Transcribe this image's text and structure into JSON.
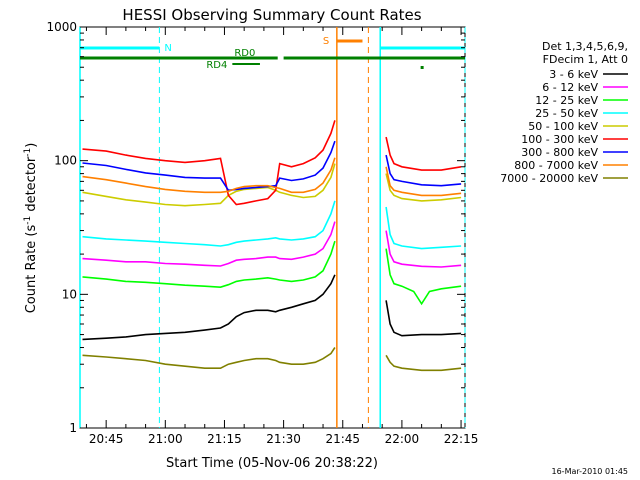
{
  "chart_data": {
    "type": "line",
    "title": "HESSI Observing Summary Count Rates",
    "xlabel": "Start Time (05-Nov-06 20:38:22)",
    "ylabel": "Count Rate (s⁻¹ detector⁻¹)",
    "ylabel_prefix": "Count Rate (s",
    "ylabel_sup1": "-1",
    "ylabel_mid": " detector",
    "ylabel_sup2": "-1",
    "ylabel_suffix": ")",
    "yscale": "log",
    "ylim": [
      1,
      1000
    ],
    "xlim": [
      "20:38:22",
      "22:16:00"
    ],
    "x_ticks": [
      "20:45",
      "21:00",
      "21:15",
      "21:30",
      "21:45",
      "22:00",
      "22:15"
    ],
    "y_ticks": [
      "1",
      "10",
      "100",
      "1000"
    ],
    "grid": false,
    "legend_position": "right",
    "legend_header": [
      "Det 1,3,4,5,6,9,",
      "FDecim 1, Att 0"
    ],
    "footer": "16-Mar-2010 01:45",
    "colors": {
      "night": "#00ffff",
      "saa": "#ff8000",
      "rd": "#008000"
    },
    "annotations": {
      "night_label": "N",
      "saa_label": "S",
      "rd0_label": "RD0",
      "rd4_label": "RD4",
      "night_intervals": [
        [
          "20:38:22",
          "20:58:30"
        ],
        [
          "21:54:30",
          "22:16:00"
        ]
      ],
      "saa_interval": [
        "21:43:30",
        "21:51:30"
      ],
      "rd0_intervals": [
        [
          "20:38:22",
          "21:28:30"
        ],
        [
          "21:30:00",
          "22:16:00"
        ]
      ],
      "rd4_interval": [
        "21:17:00",
        "21:24:00"
      ],
      "rd_dot": "22:05:00"
    },
    "series": [
      {
        "name": "3 - 6 keV",
        "color": "#000000",
        "points": [
          [
            "20:39",
            4.6
          ],
          [
            "20:45",
            4.7
          ],
          [
            "20:50",
            4.8
          ],
          [
            "20:55",
            5.0
          ],
          [
            "21:00",
            5.1
          ],
          [
            "21:05",
            5.2
          ],
          [
            "21:10",
            5.4
          ],
          [
            "21:14",
            5.6
          ],
          [
            "21:16",
            6.0
          ],
          [
            "21:18",
            6.8
          ],
          [
            "21:20",
            7.3
          ],
          [
            "21:23",
            7.6
          ],
          [
            "21:26",
            7.6
          ],
          [
            "21:28",
            7.4
          ],
          [
            "21:29",
            7.6
          ],
          [
            "21:32",
            8.0
          ],
          [
            "21:35",
            8.5
          ],
          [
            "21:38",
            9.0
          ],
          [
            "21:40",
            10.0
          ],
          [
            "21:42",
            12.0
          ],
          [
            "21:43",
            14.0
          ],
          [
            "21:56",
            9.0
          ],
          [
            "21:57",
            6.0
          ],
          [
            "21:58",
            5.2
          ],
          [
            "22:00",
            4.9
          ],
          [
            "22:05",
            5.0
          ],
          [
            "22:10",
            5.0
          ],
          [
            "22:15",
            5.1
          ]
        ]
      },
      {
        "name": "6 - 12 keV",
        "color": "#ff00ff",
        "points": [
          [
            "20:39",
            18.5
          ],
          [
            "20:45",
            18.0
          ],
          [
            "20:50",
            17.5
          ],
          [
            "20:55",
            17.5
          ],
          [
            "21:00",
            17.0
          ],
          [
            "21:05",
            16.8
          ],
          [
            "21:10",
            16.5
          ],
          [
            "21:14",
            16.3
          ],
          [
            "21:16",
            17.0
          ],
          [
            "21:18",
            18.0
          ],
          [
            "21:20",
            18.3
          ],
          [
            "21:23",
            18.5
          ],
          [
            "21:26",
            19.0
          ],
          [
            "21:28",
            19.0
          ],
          [
            "21:29",
            18.5
          ],
          [
            "21:32",
            18.3
          ],
          [
            "21:35",
            19.0
          ],
          [
            "21:38",
            20.0
          ],
          [
            "21:40",
            22.0
          ],
          [
            "21:42",
            28.0
          ],
          [
            "21:43",
            35.0
          ],
          [
            "21:56",
            30.0
          ],
          [
            "21:57",
            20.0
          ],
          [
            "21:58",
            17.5
          ],
          [
            "22:00",
            16.8
          ],
          [
            "22:05",
            16.2
          ],
          [
            "22:10",
            16.0
          ],
          [
            "22:15",
            16.5
          ]
        ]
      },
      {
        "name": "12 - 25 keV",
        "color": "#00ff00",
        "points": [
          [
            "20:39",
            13.5
          ],
          [
            "20:45",
            13.0
          ],
          [
            "20:50",
            12.5
          ],
          [
            "20:55",
            12.3
          ],
          [
            "21:00",
            12.0
          ],
          [
            "21:05",
            11.7
          ],
          [
            "21:10",
            11.5
          ],
          [
            "21:14",
            11.3
          ],
          [
            "21:16",
            11.8
          ],
          [
            "21:18",
            12.5
          ],
          [
            "21:20",
            12.8
          ],
          [
            "21:23",
            13.0
          ],
          [
            "21:26",
            13.3
          ],
          [
            "21:28",
            13.0
          ],
          [
            "21:29",
            12.8
          ],
          [
            "21:32",
            12.5
          ],
          [
            "21:35",
            12.8
          ],
          [
            "21:38",
            13.5
          ],
          [
            "21:40",
            15.0
          ],
          [
            "21:42",
            20.0
          ],
          [
            "21:43",
            25.0
          ],
          [
            "21:56",
            22.0
          ],
          [
            "21:57",
            14.0
          ],
          [
            "21:58",
            12.0
          ],
          [
            "22:00",
            11.5
          ],
          [
            "22:03",
            10.5
          ],
          [
            "22:05",
            8.5
          ],
          [
            "22:07",
            10.5
          ],
          [
            "22:10",
            11.0
          ],
          [
            "22:15",
            11.5
          ]
        ]
      },
      {
        "name": "25 - 50 keV",
        "color": "#00ffff",
        "points": [
          [
            "20:39",
            27.0
          ],
          [
            "20:45",
            26.0
          ],
          [
            "20:50",
            25.5
          ],
          [
            "20:55",
            25.0
          ],
          [
            "21:00",
            24.5
          ],
          [
            "21:05",
            24.0
          ],
          [
            "21:10",
            23.5
          ],
          [
            "21:14",
            23.0
          ],
          [
            "21:16",
            23.5
          ],
          [
            "21:18",
            24.5
          ],
          [
            "21:20",
            25.0
          ],
          [
            "21:23",
            25.5
          ],
          [
            "21:26",
            26.0
          ],
          [
            "21:28",
            26.5
          ],
          [
            "21:29",
            26.0
          ],
          [
            "21:32",
            25.5
          ],
          [
            "21:35",
            26.0
          ],
          [
            "21:38",
            27.0
          ],
          [
            "21:40",
            30.0
          ],
          [
            "21:42",
            40.0
          ],
          [
            "21:43",
            50.0
          ],
          [
            "21:56",
            45.0
          ],
          [
            "21:57",
            28.0
          ],
          [
            "21:58",
            24.0
          ],
          [
            "22:00",
            23.0
          ],
          [
            "22:05",
            22.0
          ],
          [
            "22:10",
            22.5
          ],
          [
            "22:15",
            23.0
          ]
        ]
      },
      {
        "name": "50 - 100 keV",
        "color": "#cccc00",
        "points": [
          [
            "20:39",
            58.0
          ],
          [
            "20:45",
            54.0
          ],
          [
            "20:50",
            51.0
          ],
          [
            "20:55",
            49.0
          ],
          [
            "21:00",
            47.0
          ],
          [
            "21:05",
            46.0
          ],
          [
            "21:10",
            47.0
          ],
          [
            "21:14",
            48.0
          ],
          [
            "21:16",
            55.0
          ],
          [
            "21:18",
            59.0
          ],
          [
            "21:20",
            61.0
          ],
          [
            "21:23",
            62.0
          ],
          [
            "21:26",
            63.0
          ],
          [
            "21:28",
            60.0
          ],
          [
            "21:29",
            58.0
          ],
          [
            "21:32",
            55.0
          ],
          [
            "21:35",
            53.0
          ],
          [
            "21:38",
            54.0
          ],
          [
            "21:40",
            60.0
          ],
          [
            "21:42",
            75.0
          ],
          [
            "21:43",
            95.0
          ],
          [
            "21:56",
            80.0
          ],
          [
            "21:57",
            60.0
          ],
          [
            "21:58",
            55.0
          ],
          [
            "22:00",
            52.0
          ],
          [
            "22:05",
            50.0
          ],
          [
            "22:10",
            51.0
          ],
          [
            "22:15",
            53.0
          ]
        ]
      },
      {
        "name": "100 - 300 keV",
        "color": "#ff0000",
        "points": [
          [
            "20:39",
            122.0
          ],
          [
            "20:45",
            118.0
          ],
          [
            "20:50",
            110.0
          ],
          [
            "20:55",
            104.0
          ],
          [
            "21:00",
            100.0
          ],
          [
            "21:05",
            97.0
          ],
          [
            "21:10",
            100.0
          ],
          [
            "21:14",
            104.0
          ],
          [
            "21:16",
            55.0
          ],
          [
            "21:18",
            47.0
          ],
          [
            "21:20",
            48.0
          ],
          [
            "21:23",
            50.0
          ],
          [
            "21:26",
            52.0
          ],
          [
            "21:28",
            60.0
          ],
          [
            "21:29",
            95.0
          ],
          [
            "21:32",
            90.0
          ],
          [
            "21:35",
            95.0
          ],
          [
            "21:38",
            105.0
          ],
          [
            "21:40",
            120.0
          ],
          [
            "21:42",
            160.0
          ],
          [
            "21:43",
            200.0
          ],
          [
            "21:56",
            150.0
          ],
          [
            "21:57",
            110.0
          ],
          [
            "21:58",
            95.0
          ],
          [
            "22:00",
            90.0
          ],
          [
            "22:05",
            85.0
          ],
          [
            "22:10",
            85.0
          ],
          [
            "22:15",
            90.0
          ]
        ]
      },
      {
        "name": "300 - 800 keV",
        "color": "#0000ff",
        "points": [
          [
            "20:39",
            96.0
          ],
          [
            "20:45",
            92.0
          ],
          [
            "20:50",
            86.0
          ],
          [
            "20:55",
            81.0
          ],
          [
            "21:00",
            78.0
          ],
          [
            "21:05",
            75.0
          ],
          [
            "21:10",
            74.0
          ],
          [
            "21:14",
            74.0
          ],
          [
            "21:16",
            60.0
          ],
          [
            "21:18",
            61.0
          ],
          [
            "21:20",
            62.0
          ],
          [
            "21:23",
            63.0
          ],
          [
            "21:26",
            64.0
          ],
          [
            "21:28",
            65.0
          ],
          [
            "21:29",
            74.0
          ],
          [
            "21:32",
            71.0
          ],
          [
            "21:35",
            73.0
          ],
          [
            "21:38",
            78.0
          ],
          [
            "21:40",
            88.0
          ],
          [
            "21:42",
            115.0
          ],
          [
            "21:43",
            140.0
          ],
          [
            "21:56",
            110.0
          ],
          [
            "21:57",
            80.0
          ],
          [
            "21:58",
            72.0
          ],
          [
            "22:00",
            70.0
          ],
          [
            "22:05",
            66.0
          ],
          [
            "22:10",
            65.0
          ],
          [
            "22:15",
            67.0
          ]
        ]
      },
      {
        "name": "800 - 7000 keV",
        "color": "#ff8000",
        "points": [
          [
            "20:39",
            76.0
          ],
          [
            "20:45",
            72.0
          ],
          [
            "20:50",
            68.0
          ],
          [
            "20:55",
            64.0
          ],
          [
            "21:00",
            61.0
          ],
          [
            "21:05",
            59.0
          ],
          [
            "21:10",
            58.0
          ],
          [
            "21:14",
            58.0
          ],
          [
            "21:16",
            59.0
          ],
          [
            "21:18",
            62.0
          ],
          [
            "21:20",
            64.0
          ],
          [
            "21:23",
            65.0
          ],
          [
            "21:26",
            65.0
          ],
          [
            "21:28",
            63.0
          ],
          [
            "21:29",
            62.0
          ],
          [
            "21:32",
            58.0
          ],
          [
            "21:35",
            58.0
          ],
          [
            "21:38",
            61.0
          ],
          [
            "21:40",
            68.0
          ],
          [
            "21:42",
            85.0
          ],
          [
            "21:43",
            105.0
          ],
          [
            "21:56",
            90.0
          ],
          [
            "21:57",
            65.0
          ],
          [
            "21:58",
            60.0
          ],
          [
            "22:00",
            58.0
          ],
          [
            "22:05",
            55.0
          ],
          [
            "22:10",
            55.0
          ],
          [
            "22:15",
            57.0
          ]
        ]
      },
      {
        "name": "7000 - 20000 keV",
        "color": "#808000",
        "points": [
          [
            "20:39",
            3.5
          ],
          [
            "20:45",
            3.4
          ],
          [
            "20:50",
            3.3
          ],
          [
            "20:55",
            3.2
          ],
          [
            "21:00",
            3.0
          ],
          [
            "21:05",
            2.9
          ],
          [
            "21:10",
            2.8
          ],
          [
            "21:14",
            2.8
          ],
          [
            "21:16",
            3.0
          ],
          [
            "21:18",
            3.1
          ],
          [
            "21:20",
            3.2
          ],
          [
            "21:23",
            3.3
          ],
          [
            "21:26",
            3.3
          ],
          [
            "21:28",
            3.2
          ],
          [
            "21:29",
            3.1
          ],
          [
            "21:32",
            3.0
          ],
          [
            "21:35",
            3.0
          ],
          [
            "21:38",
            3.1
          ],
          [
            "21:40",
            3.3
          ],
          [
            "21:42",
            3.6
          ],
          [
            "21:43",
            4.0
          ],
          [
            "21:56",
            3.5
          ],
          [
            "21:57",
            3.1
          ],
          [
            "21:58",
            2.9
          ],
          [
            "22:00",
            2.8
          ],
          [
            "22:05",
            2.7
          ],
          [
            "22:10",
            2.7
          ],
          [
            "22:15",
            2.8
          ]
        ]
      }
    ]
  }
}
